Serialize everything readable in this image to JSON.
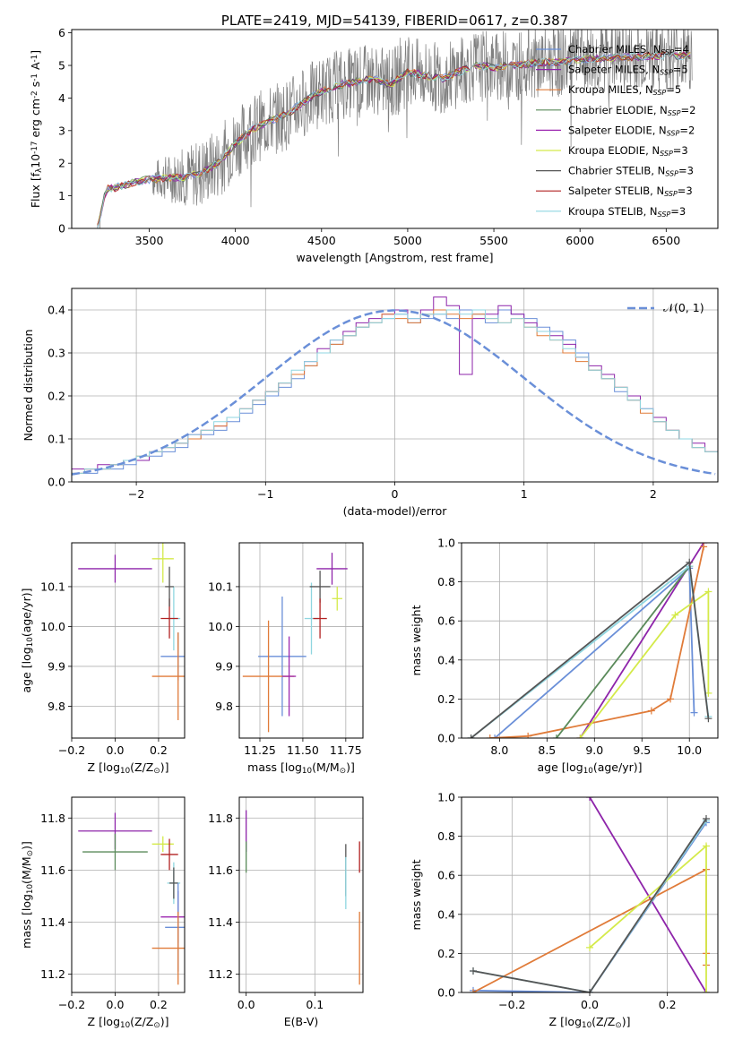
{
  "colors": {
    "c_miles": "#6a8fd8",
    "s_miles": "#8e24aa",
    "k_miles": "#e07b39",
    "c_elodie": "#5a8a5a",
    "s_elodie": "#9c27b0",
    "k_elodie": "#d4ea4a",
    "c_stelib": "#555555",
    "s_stelib": "#b22222",
    "k_stelib": "#8fd6e0",
    "spectrum": "#7f7f7f",
    "grid": "#b0b0b0"
  },
  "chart_data": [
    {
      "id": "spectrum",
      "type": "line",
      "title": "PLATE=2419, MJD=54139, FIBERID=0617, z=0.387",
      "xlabel": "wavelength [Angstrom, rest frame]",
      "ylabel": "Flux [f$_\\lambda$10$^{-17}$ erg cm$^{-2}$ s$^{-1}$ A$^{-1}$]",
      "xlim": [
        3050,
        6800
      ],
      "ylim": [
        0,
        6.1
      ],
      "xticks": [
        3500,
        4000,
        4500,
        5000,
        5500,
        6000,
        6500
      ],
      "yticks": [
        0,
        1,
        2,
        3,
        4,
        5,
        6
      ],
      "grid": false,
      "legend_position": "top-right",
      "model_continuum": {
        "x": [
          3200,
          3250,
          3300,
          3400,
          3500,
          3600,
          3700,
          3800,
          3900,
          4000,
          4100,
          4200,
          4300,
          4400,
          4500,
          4600,
          4700,
          4800,
          4900,
          5000,
          5100,
          5200,
          5300,
          5400,
          5500,
          5600,
          5700,
          5800,
          5900,
          6000,
          6100,
          6200,
          6300,
          6400,
          6500,
          6600,
          6650
        ],
        "y": [
          0.0,
          1.2,
          1.25,
          1.4,
          1.5,
          1.55,
          1.55,
          1.7,
          2.0,
          2.6,
          3.05,
          3.3,
          3.5,
          3.9,
          4.2,
          4.4,
          4.5,
          4.6,
          4.4,
          4.8,
          4.7,
          4.6,
          4.8,
          5.0,
          4.95,
          5.0,
          5.05,
          5.1,
          5.1,
          5.2,
          5.2,
          5.25,
          5.25,
          5.3,
          5.3,
          5.3,
          5.3
        ]
      },
      "legend": [
        {
          "label": "Chabrier MILES, N",
          "sub": "SSP",
          "suffix": "=4",
          "color_key": "c_miles"
        },
        {
          "label": "Salpeter MILES, N",
          "sub": "SSP",
          "suffix": "=5",
          "color_key": "s_miles"
        },
        {
          "label": "Kroupa MILES, N",
          "sub": "SSP",
          "suffix": "=5",
          "color_key": "k_miles"
        },
        {
          "label": "Chabrier ELODIE, N",
          "sub": "SSP",
          "suffix": "=2",
          "color_key": "c_elodie"
        },
        {
          "label": "Salpeter ELODIE, N",
          "sub": "SSP",
          "suffix": "=2",
          "color_key": "s_elodie"
        },
        {
          "label": "Kroupa ELODIE, N",
          "sub": "SSP",
          "suffix": "=3",
          "color_key": "k_elodie"
        },
        {
          "label": "Chabrier STELIB, N",
          "sub": "SSP",
          "suffix": "=3",
          "color_key": "c_stelib"
        },
        {
          "label": "Salpeter STELIB, N",
          "sub": "SSP",
          "suffix": "=3",
          "color_key": "s_stelib"
        },
        {
          "label": "Kroupa STELIB, N",
          "sub": "SSP",
          "suffix": "=3",
          "color_key": "k_stelib"
        }
      ]
    },
    {
      "id": "residuals",
      "type": "histogram",
      "xlabel": "(data-model)/error",
      "ylabel": "Normed distribution",
      "xlim": [
        -2.5,
        2.5
      ],
      "ylim": [
        0,
        0.45
      ],
      "xticks": [
        -2,
        -1,
        0,
        1,
        2
      ],
      "yticks": [
        0.0,
        0.1,
        0.2,
        0.3,
        0.4
      ],
      "grid": true,
      "legend_position": "top-right",
      "legend_label": "𝒩(0, 1)",
      "bin_width": 0.1,
      "bin_start": -2.5,
      "reference_curve": "normal(0,1)",
      "series": [
        {
          "color_key": "c_miles",
          "values": [
            0.02,
            0.02,
            0.03,
            0.03,
            0.04,
            0.05,
            0.06,
            0.07,
            0.08,
            0.1,
            0.11,
            0.12,
            0.14,
            0.16,
            0.18,
            0.2,
            0.22,
            0.24,
            0.27,
            0.3,
            0.32,
            0.34,
            0.36,
            0.37,
            0.38,
            0.39,
            0.37,
            0.38,
            0.39,
            0.38,
            0.4,
            0.39,
            0.37,
            0.4,
            0.39,
            0.38,
            0.36,
            0.35,
            0.33,
            0.3,
            0.26,
            0.24,
            0.21,
            0.19,
            0.17,
            0.14,
            0.12,
            0.1,
            0.08,
            0.07
          ]
        },
        {
          "color_key": "s_miles",
          "values": [
            0.03,
            0.03,
            0.04,
            0.04,
            0.05,
            0.05,
            0.07,
            0.08,
            0.09,
            0.11,
            0.12,
            0.13,
            0.15,
            0.17,
            0.19,
            0.21,
            0.23,
            0.25,
            0.28,
            0.31,
            0.33,
            0.35,
            0.37,
            0.38,
            0.39,
            0.4,
            0.38,
            0.4,
            0.43,
            0.41,
            0.25,
            0.38,
            0.39,
            0.41,
            0.39,
            0.37,
            0.35,
            0.34,
            0.32,
            0.29,
            0.27,
            0.25,
            0.22,
            0.2,
            0.17,
            0.15,
            0.12,
            0.1,
            0.09,
            0.07
          ]
        },
        {
          "color_key": "k_miles",
          "values": [
            0.02,
            0.03,
            0.03,
            0.04,
            0.05,
            0.06,
            0.07,
            0.08,
            0.09,
            0.1,
            0.12,
            0.13,
            0.15,
            0.17,
            0.19,
            0.21,
            0.23,
            0.25,
            0.27,
            0.3,
            0.32,
            0.34,
            0.36,
            0.37,
            0.39,
            0.38,
            0.37,
            0.39,
            0.4,
            0.39,
            0.38,
            0.39,
            0.38,
            0.37,
            0.38,
            0.36,
            0.34,
            0.33,
            0.3,
            0.28,
            0.26,
            0.24,
            0.22,
            0.19,
            0.16,
            0.14,
            0.12,
            0.1,
            0.08,
            0.07
          ]
        },
        {
          "color_key": "k_stelib",
          "values": [
            0.02,
            0.03,
            0.03,
            0.04,
            0.05,
            0.06,
            0.07,
            0.08,
            0.09,
            0.11,
            0.12,
            0.14,
            0.15,
            0.17,
            0.19,
            0.21,
            0.23,
            0.26,
            0.28,
            0.3,
            0.33,
            0.34,
            0.36,
            0.37,
            0.38,
            0.39,
            0.38,
            0.39,
            0.39,
            0.4,
            0.39,
            0.4,
            0.38,
            0.37,
            0.38,
            0.36,
            0.35,
            0.33,
            0.31,
            0.29,
            0.26,
            0.24,
            0.22,
            0.19,
            0.17,
            0.14,
            0.12,
            0.1,
            0.08,
            0.07
          ]
        }
      ]
    },
    {
      "id": "age-vs-Z",
      "type": "errorbar",
      "xlabel": "Z [log$_{10}$(Z/Z$_\\odot$)]",
      "ylabel": "age  [log$_{10}$(age/yr)]",
      "xlim": [
        -0.2,
        0.32
      ],
      "ylim": [
        9.72,
        10.21
      ],
      "xticks": [
        -0.2,
        0.0,
        0.2
      ],
      "yticks": [
        9.8,
        9.9,
        10.0,
        10.1
      ],
      "grid": true,
      "points": [
        {
          "x": 0.0,
          "y": 10.145,
          "xerr": 0.17,
          "yerr": 0.035,
          "color_key": "s_miles"
        },
        {
          "x": 0.27,
          "y": 10.02,
          "xerr": 0.03,
          "yerr": 0.08,
          "color_key": "k_stelib"
        },
        {
          "x": 0.22,
          "y": 10.17,
          "xerr": 0.05,
          "yerr": 0.06,
          "color_key": "k_elodie"
        },
        {
          "x": 0.29,
          "y": 9.925,
          "xerr": 0.08,
          "yerr": 0.06,
          "color_key": "c_miles"
        },
        {
          "x": 0.29,
          "y": 9.875,
          "xerr": 0.12,
          "yerr": 0.11,
          "color_key": "k_miles"
        },
        {
          "x": 0.25,
          "y": 10.02,
          "xerr": 0.04,
          "yerr": 0.05,
          "color_key": "s_stelib"
        },
        {
          "x": 0.25,
          "y": 10.1,
          "xerr": 0.02,
          "yerr": 0.05,
          "color_key": "c_stelib"
        }
      ]
    },
    {
      "id": "age-vs-mass",
      "type": "errorbar",
      "xlabel": "mass [log$_{10}$(M/M$_\\odot$)]",
      "ylabel": "",
      "xlim": [
        11.13,
        11.85
      ],
      "ylim": [
        9.72,
        10.21
      ],
      "xticks": [
        11.25,
        11.5,
        11.75
      ],
      "yticks": [
        9.8,
        9.9,
        10.0,
        10.1
      ],
      "grid": true,
      "points": [
        {
          "x": 11.67,
          "y": 10.145,
          "xerr": 0.09,
          "yerr": 0.04,
          "color_key": "s_miles"
        },
        {
          "x": 11.7,
          "y": 10.07,
          "xerr": 0.03,
          "yerr": 0.03,
          "color_key": "k_elodie"
        },
        {
          "x": 11.55,
          "y": 10.02,
          "xerr": 0.04,
          "yerr": 0.09,
          "color_key": "k_stelib"
        },
        {
          "x": 11.6,
          "y": 10.1,
          "xerr": 0.06,
          "yerr": 0.04,
          "color_key": "c_stelib"
        },
        {
          "x": 11.6,
          "y": 10.02,
          "xerr": 0.04,
          "yerr": 0.05,
          "color_key": "s_stelib"
        },
        {
          "x": 11.38,
          "y": 9.925,
          "xerr": 0.14,
          "yerr": 0.15,
          "color_key": "c_miles"
        },
        {
          "x": 11.3,
          "y": 9.875,
          "xerr": 0.15,
          "yerr": 0.14,
          "color_key": "k_miles"
        },
        {
          "x": 11.42,
          "y": 9.875,
          "xerr": 0.04,
          "yerr": 0.1,
          "color_key": "s_elodie"
        }
      ]
    },
    {
      "id": "massweight-vs-age",
      "type": "line",
      "xlabel": "age  [log$_{10}$(age/yr)]",
      "ylabel": "mass weight",
      "xlim": [
        7.6,
        10.3
      ],
      "ylim": [
        0,
        1.0
      ],
      "xticks": [
        8.0,
        8.5,
        9.0,
        9.5,
        10.0
      ],
      "yticks": [
        0.0,
        0.2,
        0.4,
        0.6,
        0.8,
        1.0
      ],
      "grid": true,
      "series": [
        {
          "color_key": "c_miles",
          "x": [
            7.95,
            10.0,
            10.05
          ],
          "y": [
            0.0,
            0.87,
            0.13
          ]
        },
        {
          "color_key": "s_miles",
          "x": [
            8.85,
            10.15
          ],
          "y": [
            0.0,
            1.0
          ]
        },
        {
          "color_key": "k_miles",
          "x": [
            7.9,
            8.3,
            9.6,
            9.8,
            10.15
          ],
          "y": [
            0.0,
            0.01,
            0.14,
            0.2,
            0.98
          ]
        },
        {
          "color_key": "c_elodie",
          "x": [
            8.6,
            10.0
          ],
          "y": [
            0.0,
            0.88
          ]
        },
        {
          "color_key": "k_elodie",
          "x": [
            8.85,
            9.85,
            10.2,
            10.2
          ],
          "y": [
            0.0,
            0.63,
            0.75,
            0.23
          ]
        },
        {
          "color_key": "k_stelib",
          "x": [
            7.7,
            10.0,
            10.2
          ],
          "y": [
            0.0,
            0.88,
            0.11
          ]
        },
        {
          "color_key": "c_stelib",
          "x": [
            7.7,
            10.0,
            10.2
          ],
          "y": [
            0.0,
            0.9,
            0.1
          ]
        }
      ]
    },
    {
      "id": "mass-vs-Z",
      "type": "errorbar",
      "xlabel": "Z [log$_{10}$(Z/Z$_\\odot$)]",
      "ylabel": "mass [log$_{10}$(M/M$_\\odot$)]",
      "xlim": [
        -0.2,
        0.32
      ],
      "ylim": [
        11.13,
        11.88
      ],
      "xticks": [
        -0.2,
        0.0,
        0.2
      ],
      "yticks": [
        11.2,
        11.4,
        11.6,
        11.8
      ],
      "grid": true,
      "points": [
        {
          "x": 0.0,
          "y": 11.75,
          "xerr": 0.17,
          "yerr": 0.07,
          "color_key": "s_miles"
        },
        {
          "x": 0.0,
          "y": 11.67,
          "xerr": 0.15,
          "yerr": 0.07,
          "color_key": "c_elodie"
        },
        {
          "x": 0.22,
          "y": 11.7,
          "xerr": 0.05,
          "yerr": 0.03,
          "color_key": "k_elodie"
        },
        {
          "x": 0.25,
          "y": 11.66,
          "xerr": 0.04,
          "yerr": 0.06,
          "color_key": "s_stelib"
        },
        {
          "x": 0.27,
          "y": 11.55,
          "xerr": 0.03,
          "yerr": 0.08,
          "color_key": "k_stelib"
        },
        {
          "x": 0.27,
          "y": 11.55,
          "xerr": 0.02,
          "yerr": 0.06,
          "color_key": "c_stelib"
        },
        {
          "x": 0.29,
          "y": 11.42,
          "xerr": 0.08,
          "yerr": 0.1,
          "color_key": "s_elodie"
        },
        {
          "x": 0.29,
          "y": 11.38,
          "xerr": 0.06,
          "yerr": 0.17,
          "color_key": "c_miles"
        },
        {
          "x": 0.29,
          "y": 11.3,
          "xerr": 0.12,
          "yerr": 0.14,
          "color_key": "k_miles"
        }
      ]
    },
    {
      "id": "mass-vs-ebv",
      "type": "errorbar",
      "xlabel": "E(B-V)",
      "ylabel": "",
      "xlim": [
        -0.01,
        0.17
      ],
      "ylim": [
        11.13,
        11.88
      ],
      "xticks": [
        0.0,
        0.1
      ],
      "yticks": [
        11.2,
        11.4,
        11.6,
        11.8
      ],
      "grid": true,
      "points": [
        {
          "x": 0.0,
          "y": 11.75,
          "xerr": 0.0,
          "yerr": 0.08,
          "color_key": "s_miles"
        },
        {
          "x": 0.0,
          "y": 11.65,
          "xerr": 0.0,
          "yerr": 0.06,
          "color_key": "c_elodie"
        },
        {
          "x": 0.145,
          "y": 11.6,
          "xerr": 0.0,
          "yerr": 0.1,
          "color_key": "c_stelib"
        },
        {
          "x": 0.145,
          "y": 11.55,
          "xerr": 0.0,
          "yerr": 0.1,
          "color_key": "k_stelib"
        },
        {
          "x": 0.165,
          "y": 11.65,
          "xerr": 0.0,
          "yerr": 0.06,
          "color_key": "s_stelib"
        },
        {
          "x": 0.165,
          "y": 11.3,
          "xerr": 0.0,
          "yerr": 0.14,
          "color_key": "k_miles"
        }
      ]
    },
    {
      "id": "massweight-vs-Z",
      "type": "line",
      "xlabel": "Z [log$_{10}$(Z/Z$_\\odot$)]",
      "ylabel": "mass weight",
      "xlim": [
        -0.33,
        0.33
      ],
      "ylim": [
        0,
        1.0
      ],
      "xticks": [
        -0.2,
        0.0,
        0.2
      ],
      "yticks": [
        0.0,
        0.2,
        0.4,
        0.6,
        0.8,
        1.0
      ],
      "grid": true,
      "series": [
        {
          "color_key": "c_miles",
          "x": [
            -0.3,
            0.0,
            0.3
          ],
          "y": [
            0.01,
            0.0,
            0.87
          ]
        },
        {
          "color_key": "s_miles",
          "x": [
            0.0,
            0.3
          ],
          "y": [
            1.0,
            0.0
          ]
        },
        {
          "color_key": "k_miles",
          "x": [
            -0.3,
            0.3,
            0.3,
            0.3
          ],
          "y": [
            0.0,
            0.63,
            0.2,
            0.14
          ]
        },
        {
          "color_key": "k_elodie",
          "x": [
            0.0,
            0.3,
            0.3
          ],
          "y": [
            0.23,
            0.75,
            0.0
          ]
        },
        {
          "color_key": "k_stelib",
          "x": [
            -0.3,
            0.0,
            0.3
          ],
          "y": [
            0.11,
            0.0,
            0.88
          ]
        },
        {
          "color_key": "c_stelib",
          "x": [
            -0.3,
            0.0,
            0.3
          ],
          "y": [
            0.11,
            0.0,
            0.89
          ]
        }
      ]
    }
  ]
}
